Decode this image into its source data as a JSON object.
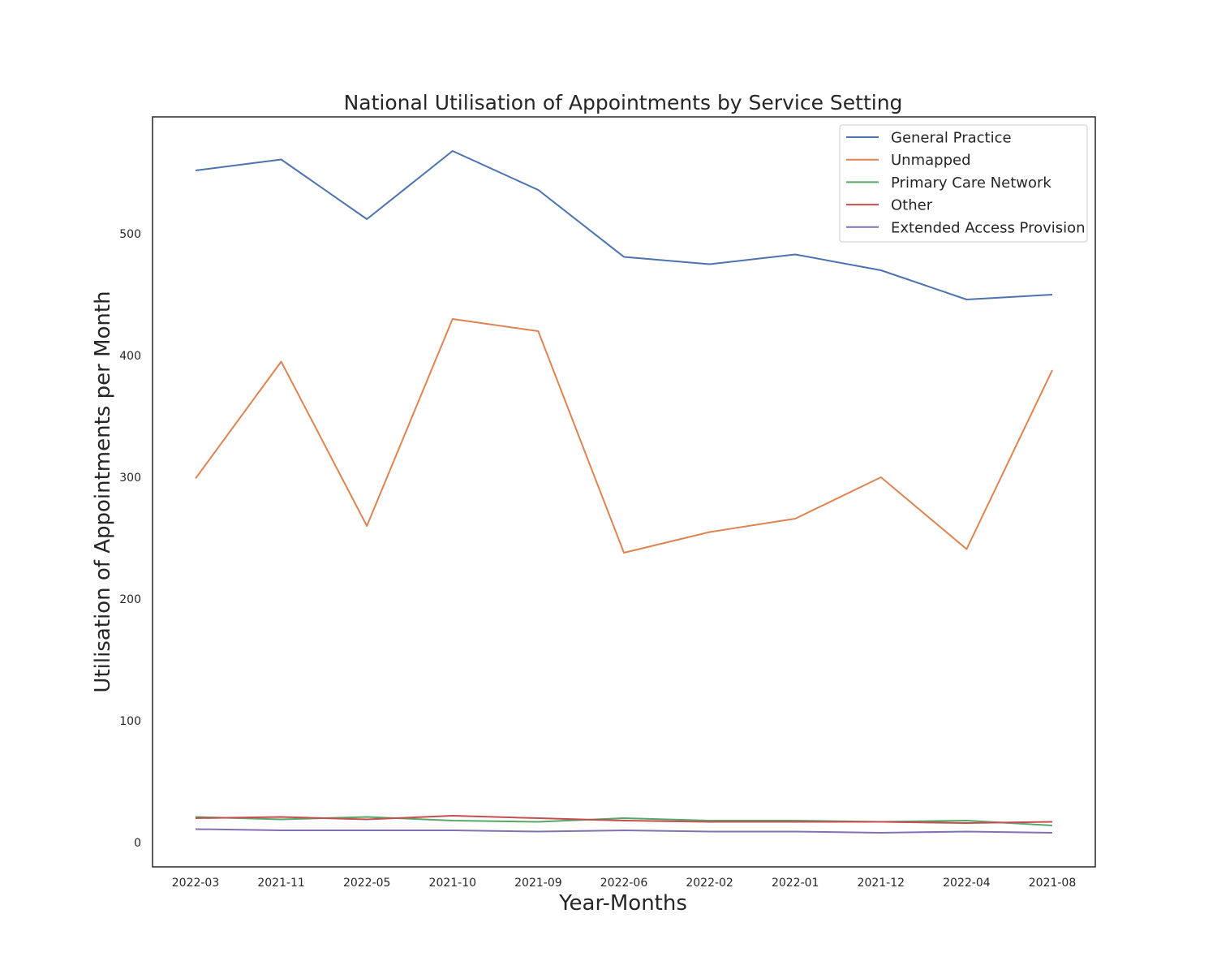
{
  "chart_data": {
    "type": "line",
    "title": "National Utilisation of Appointments by Service Setting",
    "xlabel": "Year-Months",
    "ylabel": "Utilisation of Appointments per Month",
    "categories": [
      "2022-03",
      "2021-11",
      "2022-05",
      "2021-10",
      "2021-09",
      "2022-06",
      "2022-02",
      "2022-01",
      "2021-12",
      "2022-04",
      "2021-08"
    ],
    "ylim": [
      -20,
      596
    ],
    "yticks": [
      0,
      100,
      200,
      300,
      400,
      500
    ],
    "grid": false,
    "legend": "upper-right",
    "series": [
      {
        "name": "General Practice",
        "color": "#4c72b0",
        "values": [
          552,
          561,
          512,
          568,
          536,
          481,
          475,
          483,
          470,
          446,
          450
        ]
      },
      {
        "name": "Unmapped",
        "color": "#dd8452",
        "values": [
          299,
          395,
          260,
          430,
          420,
          238,
          255,
          266,
          300,
          241,
          388
        ]
      },
      {
        "name": "Primary Care Network",
        "color": "#55a868",
        "values": [
          21,
          19,
          21,
          18,
          17,
          20,
          18,
          18,
          17,
          18,
          14
        ]
      },
      {
        "name": "Other",
        "color": "#c44e52",
        "values": [
          20,
          21,
          19,
          22,
          20,
          18,
          17,
          17,
          17,
          16,
          17
        ]
      },
      {
        "name": "Extended Access Provision",
        "color": "#8172b3",
        "values": [
          11,
          10,
          10,
          10,
          9,
          10,
          9,
          9,
          8,
          9,
          8
        ]
      }
    ]
  }
}
